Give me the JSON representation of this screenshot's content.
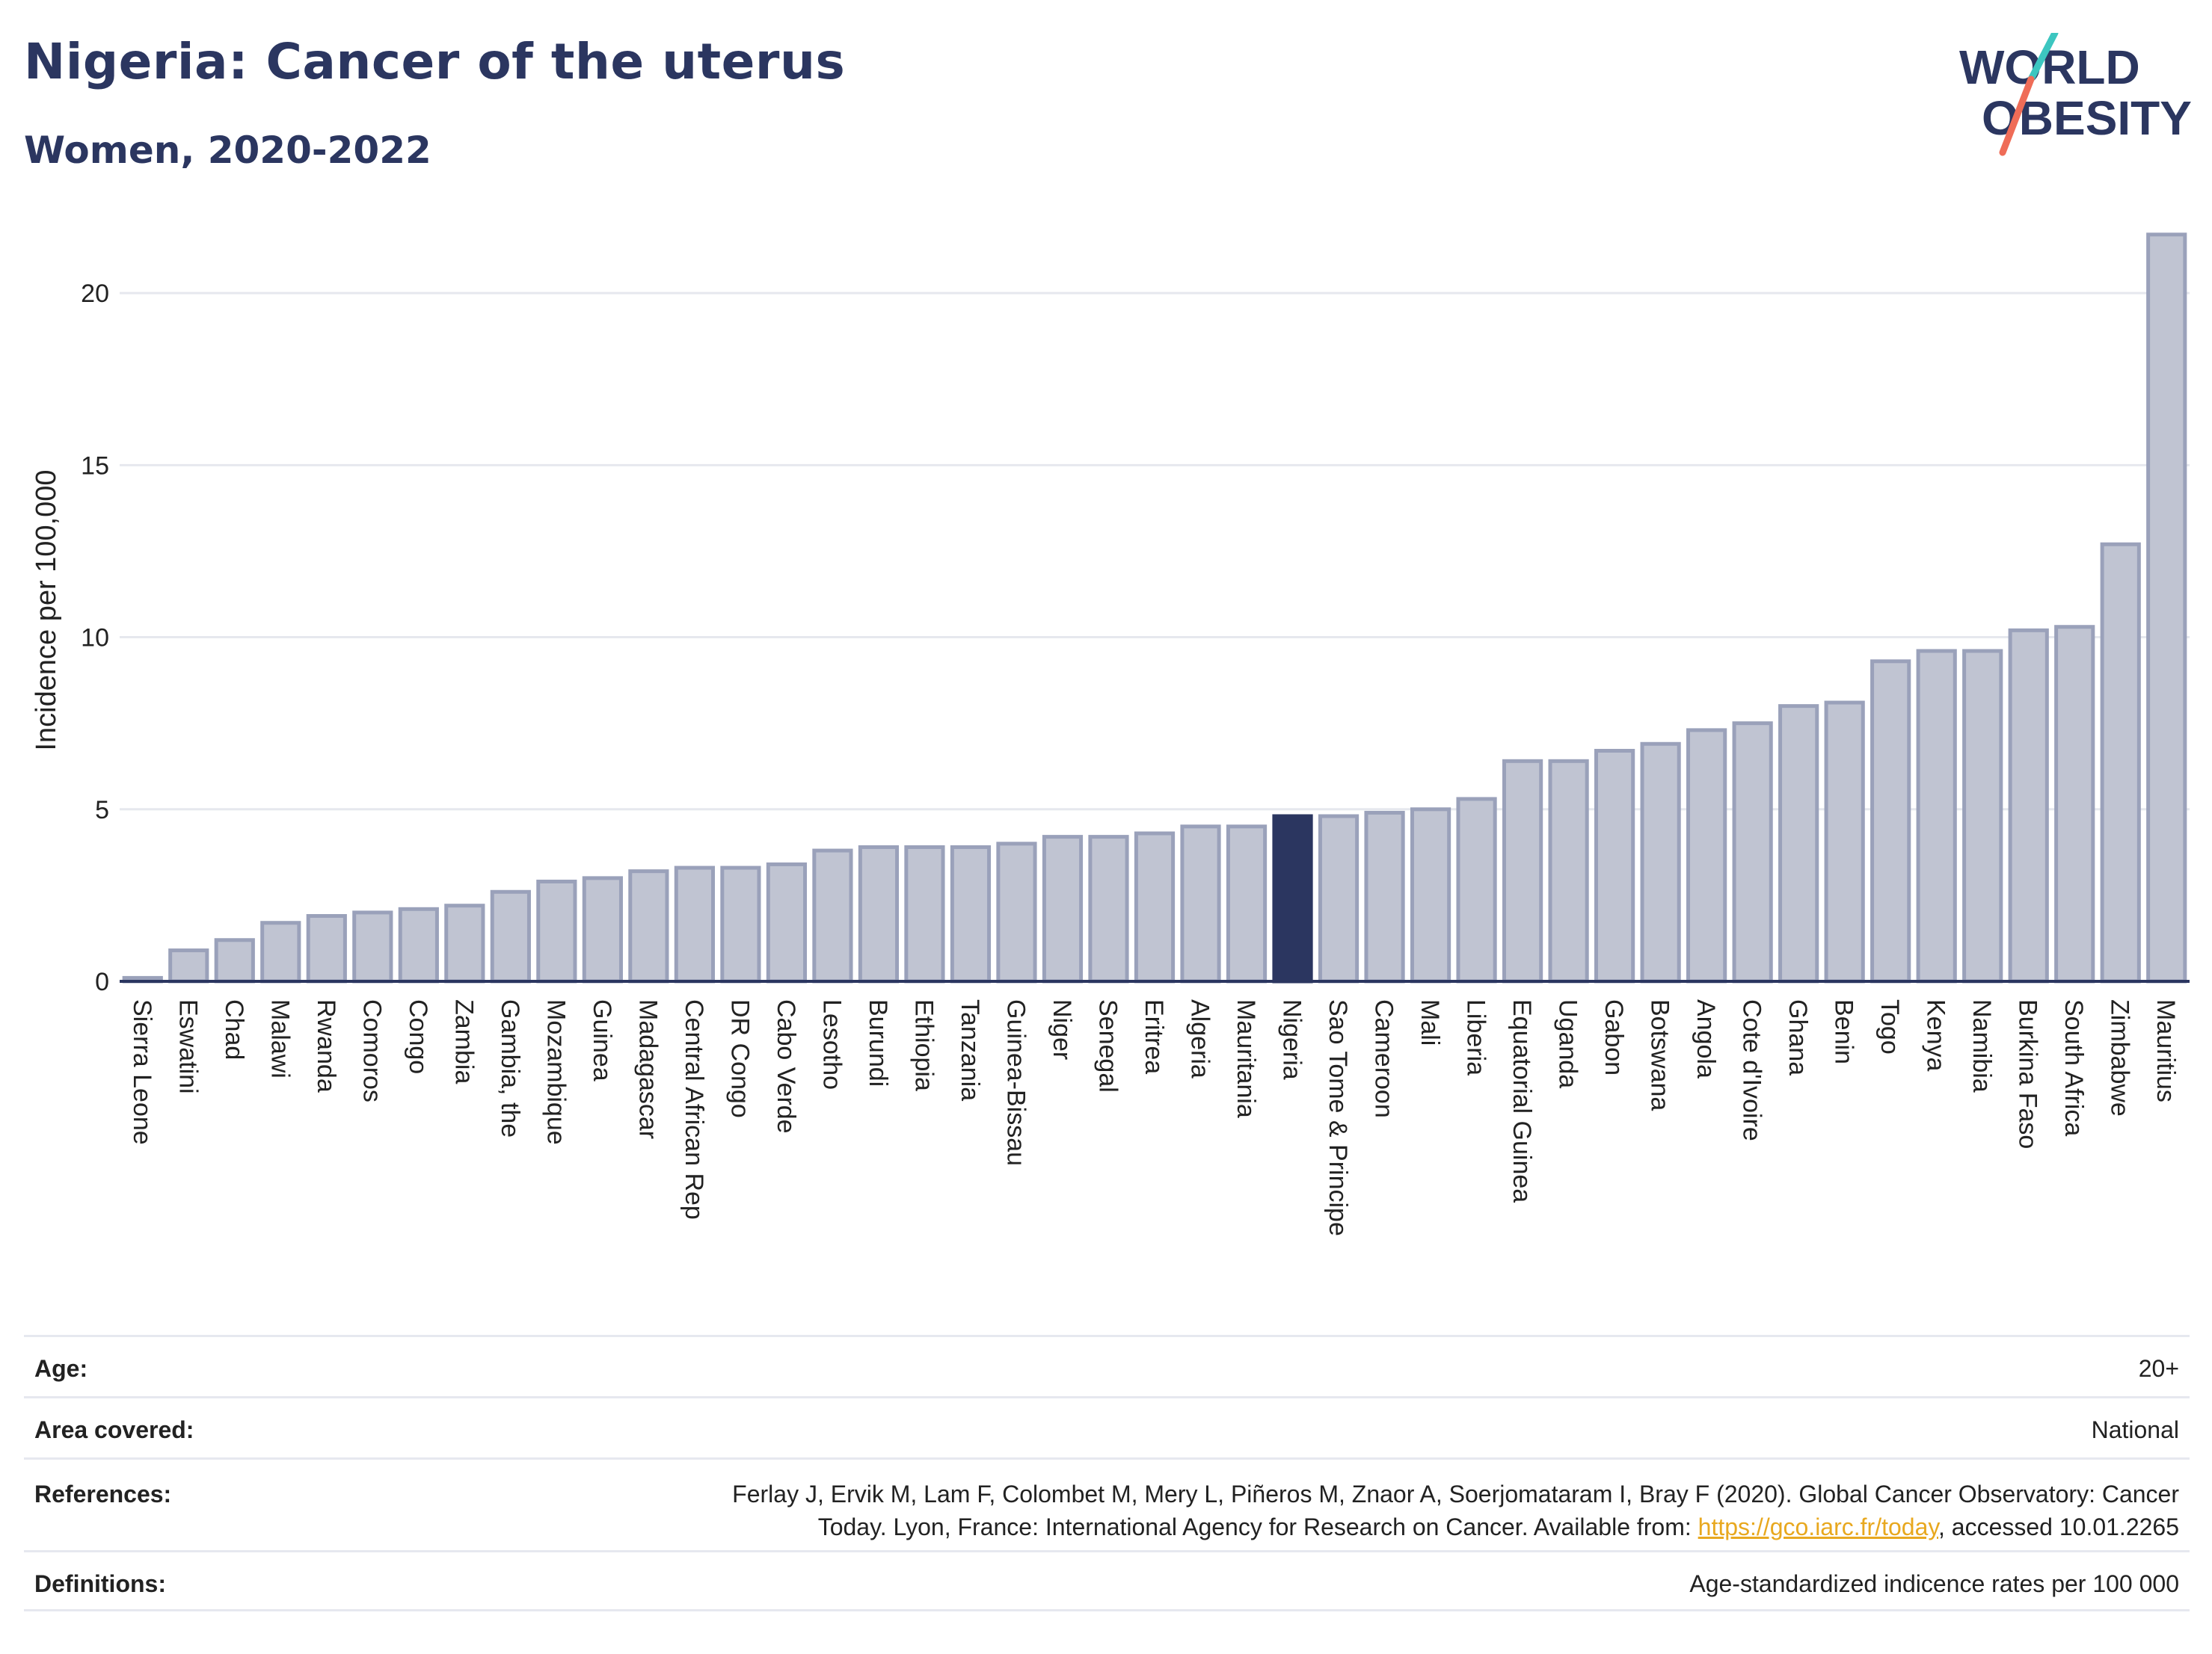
{
  "title": "Nigeria: Cancer of the uterus",
  "subtitle": "Women, 2020-2022",
  "logo": {
    "line1": "WORLD",
    "line2": "OBESITY",
    "accent_teal": "#3cc6c0",
    "accent_coral": "#ef6c57",
    "text_color": "#2b3660"
  },
  "colors": {
    "bar": "#c0c4d2",
    "bar_stroke": "#9aa1ba",
    "highlight": "#2b3660",
    "grid": "#e6e8ee",
    "axis": "#2b3660"
  },
  "chart_data": {
    "type": "bar",
    "ylabel": "Incidence per 100,000",
    "ylim": [
      0,
      22
    ],
    "yticks": [
      0,
      5,
      10,
      15,
      20
    ],
    "grid": true,
    "highlight": "Nigeria",
    "categories": [
      "Sierra Leone",
      "Eswatini",
      "Chad",
      "Malawi",
      "Rwanda",
      "Comoros",
      "Congo",
      "Zambia",
      "Gambia, the",
      "Mozambique",
      "Guinea",
      "Madagascar",
      "Central African Rep",
      "DR Congo",
      "Cabo Verde",
      "Lesotho",
      "Burundi",
      "Ethiopia",
      "Tanzania",
      "Guinea-Bissau",
      "Niger",
      "Senegal",
      "Eritrea",
      "Algeria",
      "Mauritania",
      "Nigeria",
      "Sao Tome & Principe",
      "Cameroon",
      "Mali",
      "Liberia",
      "Equatorial Guinea",
      "Uganda",
      "Gabon",
      "Botswana",
      "Angola",
      "Cote d'Ivoire",
      "Ghana",
      "Benin",
      "Togo",
      "Kenya",
      "Namibia",
      "Burkina Faso",
      "South Africa",
      "Zimbabwe",
      "Mauritius"
    ],
    "values": [
      0.1,
      0.9,
      1.2,
      1.7,
      1.9,
      2.0,
      2.1,
      2.2,
      2.6,
      2.9,
      3.0,
      3.2,
      3.3,
      3.3,
      3.4,
      3.8,
      3.9,
      3.9,
      3.9,
      4.0,
      4.2,
      4.2,
      4.3,
      4.5,
      4.5,
      4.8,
      4.8,
      4.9,
      5.0,
      5.3,
      6.4,
      6.4,
      6.7,
      6.9,
      7.3,
      7.5,
      8.0,
      8.1,
      9.3,
      9.6,
      9.6,
      10.2,
      10.3,
      12.7,
      21.7
    ]
  },
  "info": {
    "age_label": "Age:",
    "age_value": "20+",
    "area_label": "Area covered:",
    "area_value": "National",
    "ref_label": "References:",
    "ref_text_1": "Ferlay J, Ervik M, Lam F, Colombet M, Mery L, Piñeros M, Znaor A, Soerjomataram I, Bray F (2020). Global Cancer Observatory: Cancer",
    "ref_text_2": "Today. Lyon, France: International Agency for Research on Cancer. Available from: ",
    "ref_link": "https://gco.iarc.fr/today",
    "ref_text_3": ", accessed 10.01.2265",
    "def_label": "Definitions:",
    "def_value": "Age-standardized indicence rates per 100 000"
  }
}
